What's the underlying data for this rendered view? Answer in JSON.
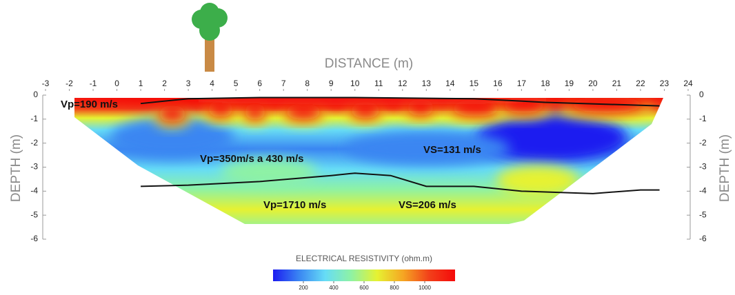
{
  "chart_data": {
    "type": "section",
    "x_label": "DISTANCE (m)",
    "y_label": "DEPTH (m)",
    "xlim": [
      -3,
      24
    ],
    "xticks": [
      -3,
      -2,
      -1,
      0,
      1,
      2,
      3,
      4,
      5,
      6,
      7,
      8,
      9,
      10,
      11,
      12,
      13,
      14,
      15,
      16,
      17,
      18,
      19,
      20,
      21,
      22,
      23,
      24
    ],
    "ylim": [
      -6,
      0
    ],
    "yticks": [
      0,
      -1,
      -2,
      -3,
      -4,
      -5,
      -6
    ],
    "interfaces": [
      {
        "x": [
          1,
          3,
          6,
          10,
          15,
          18,
          22.8
        ],
        "y": [
          -0.35,
          -0.15,
          -0.1,
          -0.1,
          -0.15,
          -0.3,
          -0.45
        ],
        "color": "#111111"
      },
      {
        "x": [
          1,
          3,
          6,
          9,
          10,
          11.5,
          13,
          15,
          17,
          20,
          22,
          22.8
        ],
        "y": [
          -3.8,
          -3.75,
          -3.6,
          -3.35,
          -3.25,
          -3.35,
          -3.8,
          -3.8,
          -4.0,
          -4.1,
          -3.95,
          -3.95
        ],
        "color": "#111111"
      }
    ],
    "annotations": [
      "Vp=190 m/s",
      "Vp=350m/s a 430 m/s",
      "VS=131 m/s",
      "Vp=1710 m/s",
      "VS=206 m/s"
    ],
    "colorbar": {
      "title": "ELECTRICAL RESISTIVITY (ohm.m)",
      "lim": [
        0,
        1200
      ],
      "ticks": [
        200,
        400,
        600,
        800,
        1000
      ],
      "colors": [
        "#1c1cf0",
        "#3a86f2",
        "#66dcf6",
        "#8ef2a4",
        "#e6f232",
        "#f5a623",
        "#f2401a",
        "#f50a0a"
      ]
    }
  }
}
